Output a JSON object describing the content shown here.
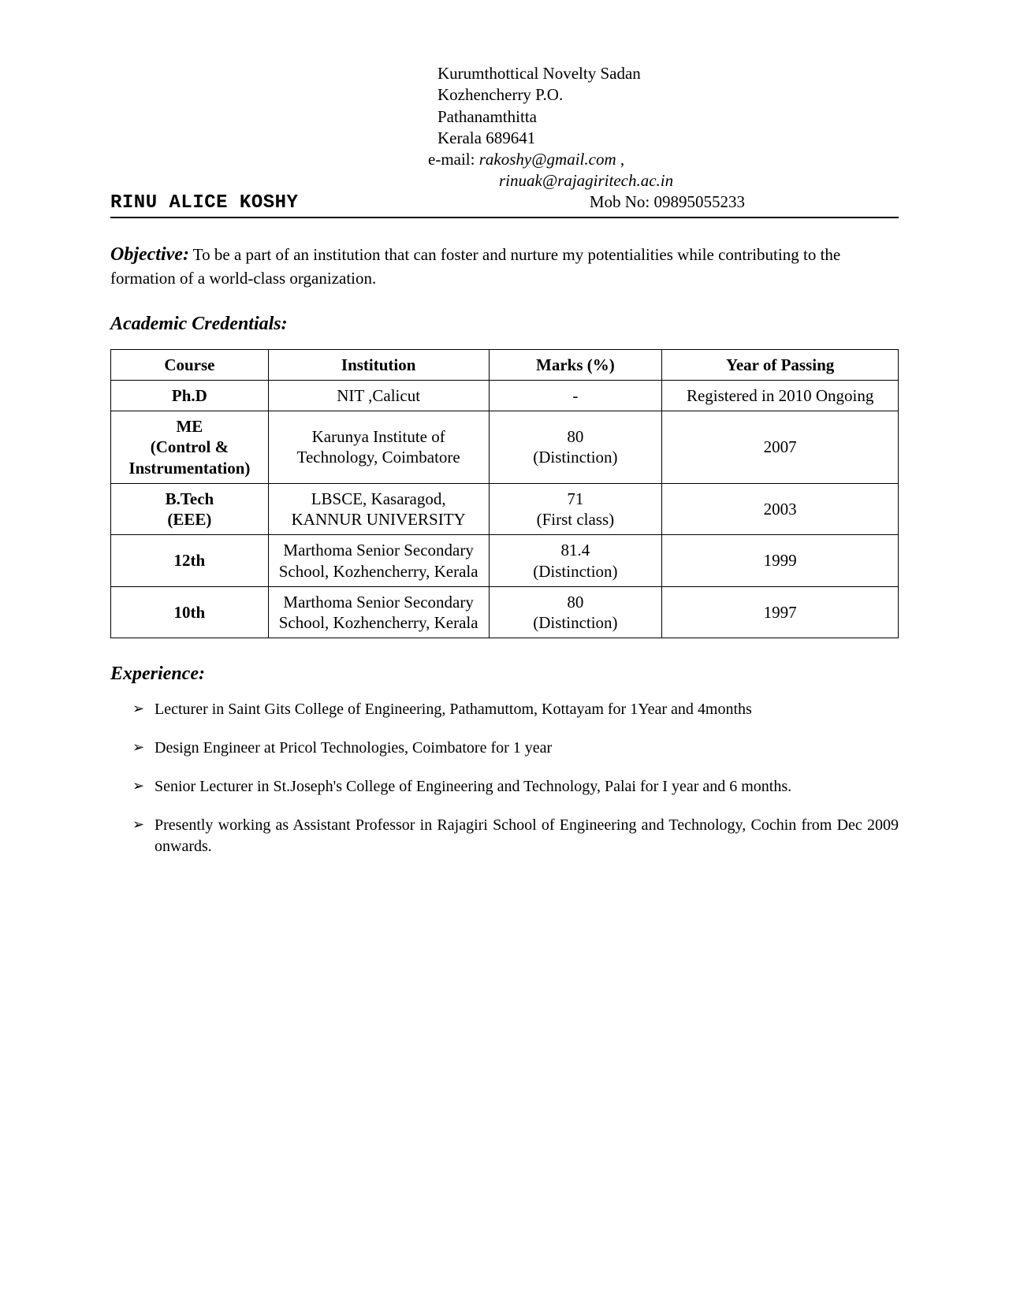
{
  "header": {
    "address_lines": [
      "Kurumthottical Novelty Sadan",
      "Kozhencherry P.O.",
      "Pathanamthitta",
      "Kerala  689641"
    ],
    "email_label": "e-mail:",
    "email1": "rakoshy@gmail.com",
    "email_sep": " ,",
    "email2": "rinuak@rajagiritech.ac.in",
    "name": "RINU ALICE KOSHY",
    "mob_label": "Mob No: ",
    "mob_value": "09895055233"
  },
  "objective": {
    "label": "Objective:",
    "text": " To be a part of an institution that can foster and nurture my potentialities while contributing to the formation of a world-class organization."
  },
  "academic": {
    "heading": "Academic Credentials:",
    "columns": [
      "Course",
      "Institution",
      "Marks (%)",
      "Year of Passing"
    ],
    "rows": [
      {
        "course": "Ph.D",
        "institution": "NIT ,Calicut",
        "marks": "-",
        "year": "Registered in 2010 Ongoing"
      },
      {
        "course": "ME\n(Control & Instrumentation)",
        "institution": "Karunya Institute of Technology, Coimbatore",
        "marks": "80\n(Distinction)",
        "year": "2007"
      },
      {
        "course": "B.Tech\n(EEE)",
        "institution": "LBSCE, Kasaragod, KANNUR UNIVERSITY",
        "marks": "71\n(First class)",
        "year": "2003"
      },
      {
        "course": "12th",
        "institution": "Marthoma Senior Secondary School, Kozhencherry, Kerala",
        "marks": "81.4\n(Distinction)",
        "year": "1999"
      },
      {
        "course": "10th",
        "institution": "Marthoma Senior Secondary School, Kozhencherry, Kerala",
        "marks": "80\n(Distinction)",
        "year": "1997"
      }
    ]
  },
  "experience": {
    "heading": "Experience:",
    "items": [
      "Lecturer in Saint Gits College of  Engineering, Pathamuttom, Kottayam for 1Year and 4months",
      "Design Engineer at Pricol Technologies, Coimbatore for 1 year",
      "Senior Lecturer in St.Joseph's College of Engineering and Technology, Palai for I year and 6 months.",
      "Presently working as Assistant Professor in Rajagiri School of Engineering and Technology, Cochin from Dec 2009 onwards."
    ]
  },
  "style": {
    "text_color": "#000000",
    "background": "#ffffff",
    "border_color": "#000000",
    "body_fontsize": 21,
    "heading_fontsize": 24,
    "name_font": "Courier New"
  }
}
